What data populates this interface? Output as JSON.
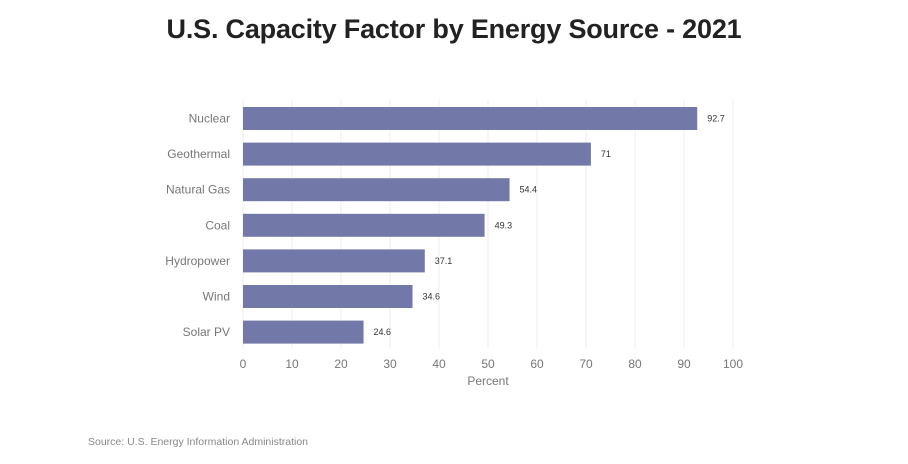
{
  "chart_data": {
    "type": "bar",
    "orientation": "horizontal",
    "title": "U.S. Capacity Factor by Energy Source - 2021",
    "categories": [
      "Nuclear",
      "Geothermal",
      "Natural Gas",
      "Coal",
      "Hydropower",
      "Wind",
      "Solar PV"
    ],
    "values": [
      92.7,
      71,
      54.4,
      49.3,
      37.1,
      34.6,
      24.6
    ],
    "value_labels": [
      "92.7",
      "71",
      "54.4",
      "49.3",
      "37.1",
      "34.6",
      "24.6"
    ],
    "xlabel": "Percent",
    "ylabel": "",
    "xlim": [
      0,
      100
    ],
    "xticks": [
      0,
      10,
      20,
      30,
      40,
      50,
      60,
      70,
      80,
      90,
      100
    ],
    "grid": true,
    "bar_color": "#7279a8",
    "source": "Source: U.S. Energy Information Administration"
  }
}
